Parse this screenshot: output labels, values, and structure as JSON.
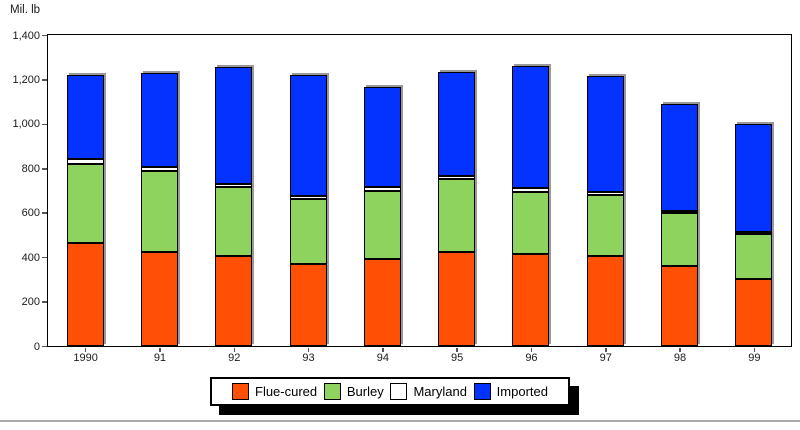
{
  "chart_data": {
    "type": "bar",
    "stacked": true,
    "title": "",
    "ylabel": "Mil. lb",
    "xlabel": "",
    "categories": [
      "1990",
      "91",
      "92",
      "93",
      "94",
      "95",
      "96",
      "97",
      "98",
      "99"
    ],
    "series": [
      {
        "name": "Flue-cured",
        "color": "#FF5005",
        "values": [
          465,
          425,
          405,
          370,
          390,
          425,
          415,
          405,
          360,
          300
        ]
      },
      {
        "name": "Burley",
        "color": "#8DD35E",
        "values": [
          355,
          365,
          310,
          290,
          310,
          325,
          280,
          275,
          240,
          205
        ]
      },
      {
        "name": "Maryland",
        "color": "#FFFFFF",
        "values": [
          20,
          15,
          15,
          15,
          15,
          15,
          15,
          15,
          5,
          10
        ]
      },
      {
        "name": "Imported",
        "color": "#0432FF",
        "values": [
          380,
          425,
          525,
          545,
          450,
          470,
          550,
          520,
          480,
          485
        ]
      }
    ],
    "totals": [
      1220,
      1230,
      1255,
      1220,
      1165,
      1235,
      1260,
      1215,
      1085,
      1000
    ],
    "ylim": [
      0,
      1400
    ],
    "yticks": [
      0,
      200,
      400,
      600,
      800,
      1000,
      1200,
      1400
    ],
    "grid": false,
    "legend_position": "bottom"
  },
  "colors": {
    "axis": "#000000",
    "bar_border": "#000000",
    "bar_shadow": "#999999",
    "legend_shadow": "#000000",
    "bottom_rule": "#ababab"
  }
}
